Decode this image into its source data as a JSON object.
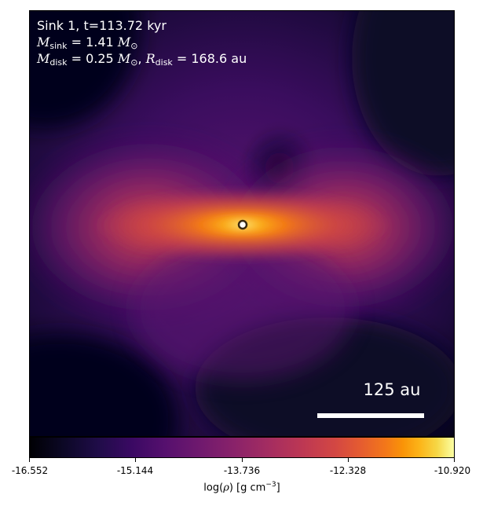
{
  "annotation": {
    "line1": "Sink 1, t=113.72 kyr",
    "msink_symbol": "M",
    "msink_sub": "sink",
    "msink_value": " = 1.41 ",
    "msink_unit": "M",
    "msink_unit_sub": "⊙",
    "mdisk_symbol": "M",
    "mdisk_sub": "disk",
    "mdisk_value": " = 0.25 ",
    "mdisk_unit": "M",
    "mdisk_unit_sub": "⊙",
    "separator": ", ",
    "rdisk_symbol": "R",
    "rdisk_sub": "disk",
    "rdisk_value": " = 168.6 au"
  },
  "scalebar": {
    "label": "125 au"
  },
  "colorbar": {
    "ticks": [
      "-16.552",
      "-15.144",
      "-13.736",
      "-12.328",
      "-10.920"
    ],
    "label_prefix": "log(",
    "label_rho": "ρ",
    "label_mid": ") [g cm",
    "label_exp": "−3",
    "label_suffix": "]",
    "colormap": "inferno"
  },
  "colors": {
    "background_dark": "#000004",
    "disk_core": "#f5a623",
    "sink_marker_fill": "#ffffff",
    "sink_marker_edge": "#3a2a10"
  }
}
